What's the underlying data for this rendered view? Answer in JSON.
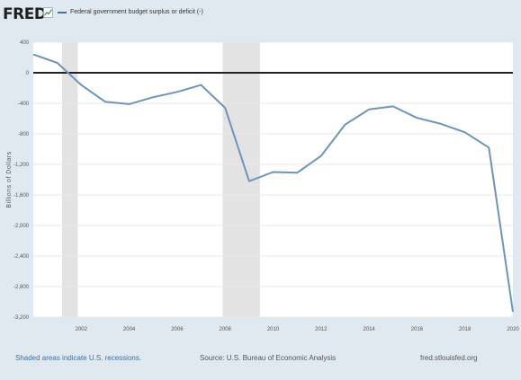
{
  "header": {
    "logo_text": "FRED",
    "legend_label": "Federal government budget surplus or deficit (-)"
  },
  "footer": {
    "recession_note": "Shaded areas indicate U.S. recessions.",
    "source": "Source: U.S. Bureau of Economic Analysis",
    "site": "fred.stlouisfed.org"
  },
  "colors": {
    "series": "#6e94bb",
    "recession": "#e3e3e3",
    "zero_line": "#222222",
    "grid": "#e8e8e8",
    "background": "#e1e9f0"
  },
  "chart_data": {
    "type": "line",
    "title": "",
    "xlabel": "",
    "ylabel": "Billions of Dollars",
    "xlim": [
      2000,
      2020
    ],
    "ylim": [
      -3200,
      400
    ],
    "y_ticks": [
      400,
      0,
      -400,
      -800,
      -1200,
      -1600,
      -2000,
      -2400,
      -2800,
      -3200
    ],
    "y_tick_labels": [
      "400",
      "0",
      "-400",
      "-800",
      "-1,200",
      "-1,600",
      "-2,000",
      "-2,400",
      "-2,800",
      "-3,200"
    ],
    "x_ticks": [
      2002,
      2004,
      2006,
      2008,
      2010,
      2012,
      2014,
      2016,
      2018,
      2020
    ],
    "x_tick_labels": [
      "2002",
      "2004",
      "2006",
      "2008",
      "2010",
      "2012",
      "2014",
      "2016",
      "2018",
      "2020"
    ],
    "grid": true,
    "legend_position": "top-left",
    "recessions": [
      [
        2001.2,
        2001.85
      ],
      [
        2007.9,
        2009.45
      ]
    ],
    "series": [
      {
        "name": "Federal government budget surplus or deficit (-)",
        "x": [
          2000,
          2001,
          2002,
          2003,
          2004,
          2005,
          2006,
          2007,
          2008,
          2009,
          2010,
          2011,
          2012,
          2013,
          2014,
          2015,
          2016,
          2017,
          2018,
          2019,
          2020
        ],
        "values": [
          240,
          130,
          -160,
          -380,
          -410,
          -320,
          -250,
          -160,
          -460,
          -1420,
          -1300,
          -1310,
          -1090,
          -680,
          -480,
          -440,
          -590,
          -670,
          -780,
          -980,
          -3130
        ]
      }
    ]
  }
}
